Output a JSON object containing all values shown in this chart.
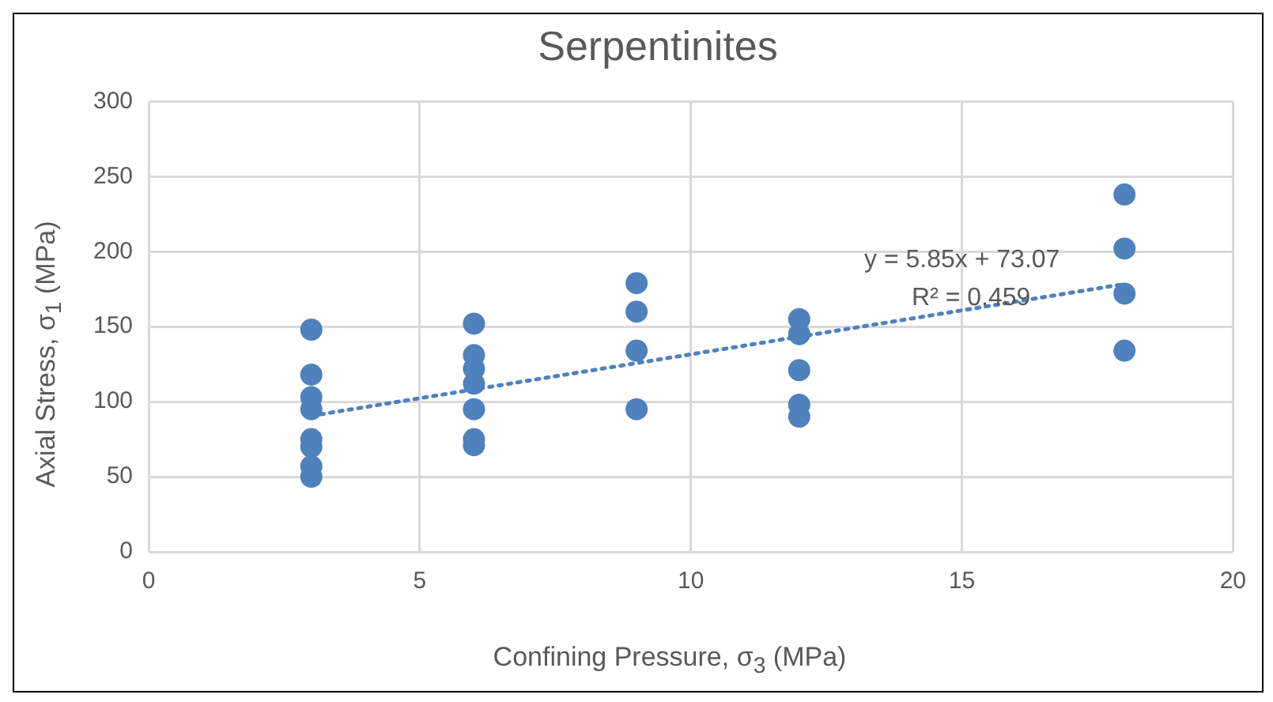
{
  "chart_data": {
    "type": "scatter",
    "title": "Serpentinites",
    "xlabel": "Confining Pressure, σ$_{3}$ (MPa)",
    "ylabel": "Axial Stress, σ$_{1}$ (MPa)",
    "series": [
      {
        "color": "#4f81bd",
        "marker": "circle",
        "x": [
          3,
          3,
          3,
          3,
          3,
          3,
          3,
          3,
          6,
          6,
          6,
          6,
          6,
          6,
          6,
          9,
          9,
          9,
          9,
          12,
          12,
          12,
          12,
          12,
          18,
          18,
          18,
          18
        ],
        "values": [
          148,
          118,
          103,
          95,
          75,
          70,
          57,
          50,
          152,
          131,
          122,
          112,
          95,
          75,
          71,
          179,
          160,
          134,
          95,
          155,
          145,
          121,
          98,
          90,
          238,
          202,
          172,
          134
        ]
      },
      {
        "type": "line",
        "color": "#4f81bd",
        "marker": "none",
        "line_style": "dotted",
        "x": [
          3,
          18
        ],
        "values": [
          90.6,
          178.4
        ]
      }
    ],
    "annotations": [
      "y = 5.85x + 73.07",
      "R² = 0.459"
    ],
    "xlim": [
      0,
      20
    ],
    "xticks": [
      0,
      5,
      10,
      15,
      20
    ],
    "ylim": [
      0,
      300
    ],
    "yticks": [
      0,
      50,
      100,
      150,
      200,
      250,
      300
    ],
    "grid": true,
    "legend": false
  }
}
